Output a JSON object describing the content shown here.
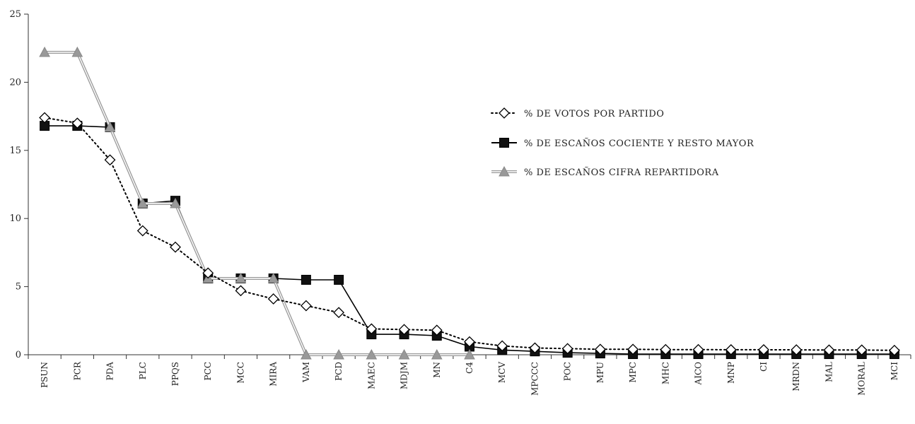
{
  "chart_data": {
    "type": "line",
    "categories": [
      "PSUN",
      "PCR",
      "PDA",
      "PLC",
      "PPQS",
      "PCC",
      "MCC",
      "MIRA",
      "VAM",
      "PCD",
      "MAEC",
      "MDJM",
      "MN",
      "C4",
      "MCV",
      "MPCCC",
      "POC",
      "MPU",
      "MPC",
      "MHC",
      "AICO",
      "MNP",
      "CI",
      "MRDN",
      "MAL",
      "MORAL",
      "MCI"
    ],
    "ylim": [
      0,
      25
    ],
    "yticks": [
      0,
      5,
      10,
      15,
      20,
      25
    ],
    "legend_position": "right",
    "series": [
      {
        "name": "% DE VOTOS POR PARTIDO",
        "color": "#000000",
        "marker": "diamond",
        "line": "dotted",
        "values": [
          17.4,
          17.0,
          14.3,
          9.1,
          7.9,
          6.0,
          4.7,
          4.1,
          3.6,
          3.1,
          1.9,
          1.85,
          1.8,
          0.95,
          0.65,
          0.5,
          0.45,
          0.4,
          0.4,
          0.38,
          0.38,
          0.37,
          0.37,
          0.36,
          0.35,
          0.35,
          0.32
        ]
      },
      {
        "name": "% DE ESCAÑOS COCIENTE Y RESTO MAYOR",
        "color": "#000000",
        "marker": "square",
        "line": "solid",
        "values": [
          16.8,
          16.8,
          16.7,
          11.1,
          11.3,
          5.6,
          5.6,
          5.6,
          5.5,
          5.5,
          1.5,
          1.5,
          1.4,
          0.6,
          0.35,
          0.25,
          0.15,
          0.1,
          0.05,
          0.05,
          0.05,
          0.05,
          0.05,
          0.05,
          0.05,
          0.05,
          0.05
        ]
      },
      {
        "name": "% DE ESCAÑOS CIFRA REPARTIDORA",
        "color": "#999999",
        "marker": "triangle",
        "line": "double",
        "values": [
          22.2,
          22.2,
          16.7,
          11.1,
          11.1,
          5.6,
          5.6,
          5.6,
          0,
          0,
          0,
          0,
          0,
          0,
          null,
          null,
          null,
          null,
          null,
          null,
          null,
          null,
          null,
          null,
          null,
          null,
          null
        ]
      }
    ]
  }
}
